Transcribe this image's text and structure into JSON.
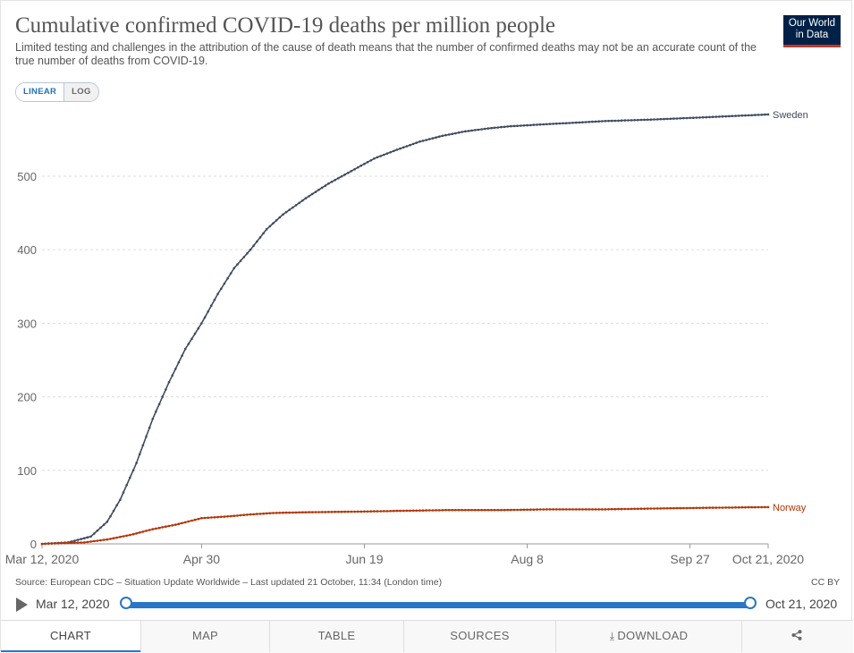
{
  "header": {
    "title": "Cumulative confirmed COVID-19 deaths per million people",
    "subtitle": "Limited testing and challenges in the attribution of the cause of death means that the number of confirmed deaths may not be an accurate count of the true number of deaths from COVID-19.",
    "logo_line1": "Our World",
    "logo_line2": "in Data"
  },
  "controls": {
    "linear_label": "LINEAR",
    "log_label": "LOG",
    "active_scale": "linear"
  },
  "chart_data": {
    "type": "line",
    "title": "Cumulative confirmed COVID-19 deaths per million people",
    "xlabel": "",
    "ylabel": "",
    "x_range": [
      "2020-03-12",
      "2020-10-21"
    ],
    "ylim": [
      0,
      590
    ],
    "y_ticks": [
      0,
      100,
      200,
      300,
      400,
      500
    ],
    "x_tick_labels": [
      {
        "date": "2020-03-12",
        "label": "Mar 12, 2020"
      },
      {
        "date": "2020-04-30",
        "label": "Apr 30"
      },
      {
        "date": "2020-06-19",
        "label": "Jun 19"
      },
      {
        "date": "2020-08-08",
        "label": "Aug 8"
      },
      {
        "date": "2020-09-27",
        "label": "Sep 27"
      },
      {
        "date": "2020-10-21",
        "label": "Oct 21, 2020"
      }
    ],
    "grid": "horizontal dashed",
    "series": [
      {
        "name": "Sweden",
        "color": "#3f4b5f",
        "points": [
          [
            "2020-03-12",
            0
          ],
          [
            "2020-03-20",
            2
          ],
          [
            "2020-03-27",
            10
          ],
          [
            "2020-04-01",
            30
          ],
          [
            "2020-04-05",
            60
          ],
          [
            "2020-04-10",
            110
          ],
          [
            "2020-04-15",
            170
          ],
          [
            "2020-04-20",
            220
          ],
          [
            "2020-04-25",
            265
          ],
          [
            "2020-04-30",
            300
          ],
          [
            "2020-05-05",
            340
          ],
          [
            "2020-05-10",
            375
          ],
          [
            "2020-05-15",
            400
          ],
          [
            "2020-05-20",
            428
          ],
          [
            "2020-05-25",
            448
          ],
          [
            "2020-06-01",
            470
          ],
          [
            "2020-06-08",
            490
          ],
          [
            "2020-06-15",
            507
          ],
          [
            "2020-06-22",
            524
          ],
          [
            "2020-06-29",
            536
          ],
          [
            "2020-07-06",
            547
          ],
          [
            "2020-07-13",
            555
          ],
          [
            "2020-07-20",
            561
          ],
          [
            "2020-07-27",
            565
          ],
          [
            "2020-08-03",
            568
          ],
          [
            "2020-08-15",
            571
          ],
          [
            "2020-09-01",
            575
          ],
          [
            "2020-09-15",
            577
          ],
          [
            "2020-10-01",
            580
          ],
          [
            "2020-10-21",
            584
          ]
        ]
      },
      {
        "name": "Norway",
        "color": "#b13507",
        "points": [
          [
            "2020-03-12",
            0
          ],
          [
            "2020-03-25",
            2
          ],
          [
            "2020-04-01",
            6
          ],
          [
            "2020-04-08",
            12
          ],
          [
            "2020-04-15",
            20
          ],
          [
            "2020-04-22",
            26
          ],
          [
            "2020-04-30",
            35
          ],
          [
            "2020-05-07",
            37
          ],
          [
            "2020-05-15",
            40
          ],
          [
            "2020-05-22",
            42
          ],
          [
            "2020-06-01",
            43
          ],
          [
            "2020-06-19",
            44
          ],
          [
            "2020-07-01",
            45
          ],
          [
            "2020-07-15",
            46
          ],
          [
            "2020-08-01",
            46
          ],
          [
            "2020-08-15",
            47
          ],
          [
            "2020-09-01",
            47
          ],
          [
            "2020-09-15",
            48
          ],
          [
            "2020-10-01",
            49
          ],
          [
            "2020-10-21",
            50
          ]
        ]
      }
    ]
  },
  "footer": {
    "source": "Source: European CDC – Situation Update Worldwide – Last updated 21 October, 11:34 (London time)",
    "license": "CC BY"
  },
  "timeline": {
    "start_label": "Mar 12, 2020",
    "end_label": "Oct 21, 2020",
    "start_fraction": 0,
    "end_fraction": 1
  },
  "tabs": [
    {
      "label": "CHART",
      "active": true
    },
    {
      "label": "MAP",
      "active": false
    },
    {
      "label": "TABLE",
      "active": false
    },
    {
      "label": "SOURCES",
      "active": false
    },
    {
      "label": "DOWNLOAD",
      "active": false
    }
  ],
  "icons": {
    "play": "play-icon",
    "download": "download-icon",
    "share": "share-icon"
  }
}
